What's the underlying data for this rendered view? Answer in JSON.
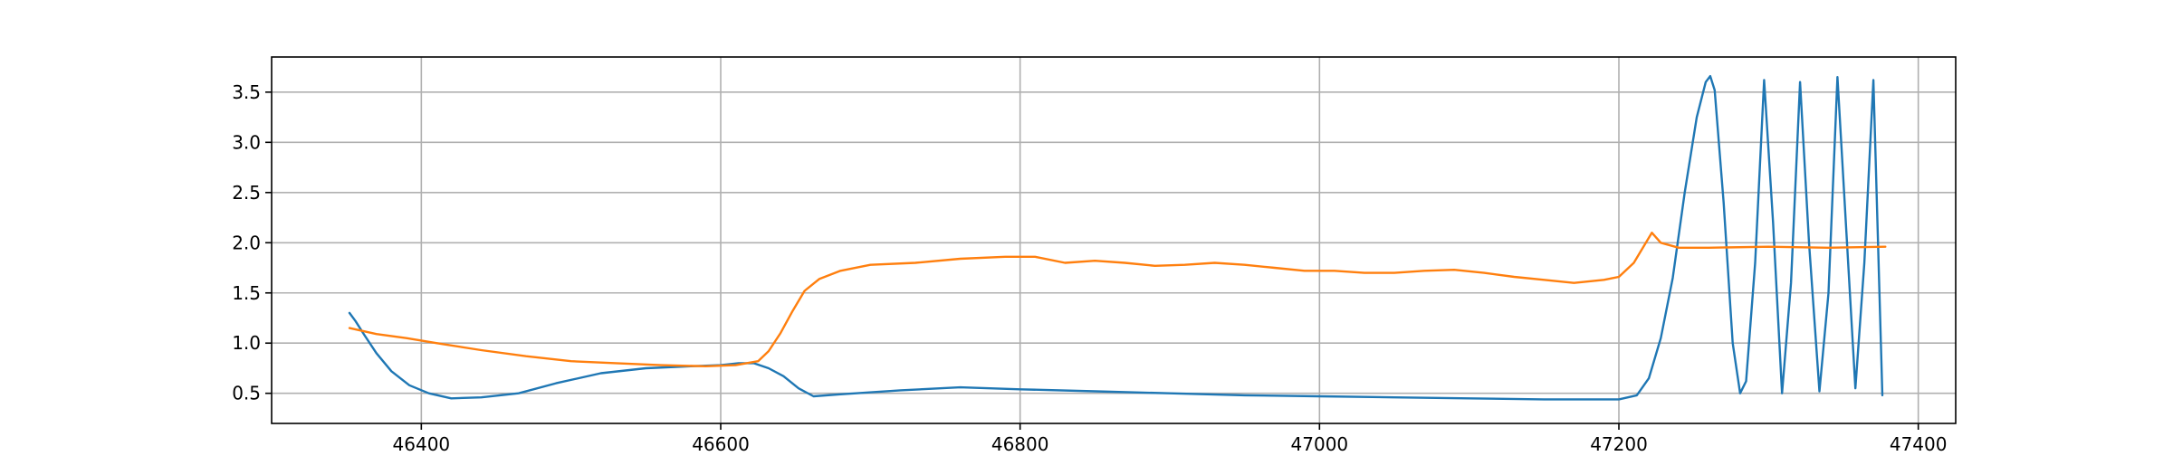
{
  "chart_data": {
    "type": "line",
    "title": "",
    "xlabel": "",
    "ylabel": "",
    "xlim": [
      46300,
      47425
    ],
    "ylim": [
      0.2,
      3.85
    ],
    "x_ticks": [
      46400,
      46600,
      46800,
      47000,
      47200,
      47400
    ],
    "y_ticks": [
      0.5,
      1.0,
      1.5,
      2.0,
      2.5,
      3.0,
      3.5
    ],
    "x_tick_labels": [
      "46400",
      "46600",
      "46800",
      "47000",
      "47200",
      "47400"
    ],
    "y_tick_labels": [
      "0.5",
      "1.0",
      "1.5",
      "2.0",
      "2.5",
      "3.0",
      "3.5"
    ],
    "grid": true,
    "legend": "none",
    "series": [
      {
        "color": "#1f77b4",
        "x": [
          46352,
          46356,
          46362,
          46370,
          46380,
          46392,
          46405,
          46420,
          46440,
          46465,
          46490,
          46520,
          46550,
          46580,
          46600,
          46612,
          46622,
          46632,
          46642,
          46652,
          46662,
          46680,
          46720,
          46760,
          46800,
          46850,
          46900,
          46950,
          47000,
          47050,
          47100,
          47150,
          47200,
          47212,
          47220,
          47228,
          47236,
          47244,
          47252,
          47258,
          47261,
          47264,
          47270,
          47276,
          47281,
          47285,
          47291,
          47297,
          47303,
          47309,
          47315,
          47321,
          47327,
          47334,
          47340,
          47346,
          47352,
          47358,
          47364,
          47370,
          47376
        ],
        "y": [
          1.3,
          1.22,
          1.08,
          0.9,
          0.72,
          0.58,
          0.5,
          0.45,
          0.46,
          0.5,
          0.6,
          0.7,
          0.75,
          0.77,
          0.78,
          0.8,
          0.8,
          0.75,
          0.67,
          0.55,
          0.47,
          0.49,
          0.53,
          0.56,
          0.54,
          0.52,
          0.5,
          0.48,
          0.47,
          0.46,
          0.45,
          0.44,
          0.44,
          0.48,
          0.65,
          1.05,
          1.65,
          2.5,
          3.25,
          3.6,
          3.66,
          3.52,
          2.4,
          1.0,
          0.5,
          0.62,
          1.8,
          3.62,
          2.2,
          0.5,
          1.6,
          3.6,
          2.0,
          0.52,
          1.5,
          3.65,
          2.1,
          0.55,
          1.8,
          3.62,
          0.48
        ]
      },
      {
        "color": "#ff7f0e",
        "x": [
          46352,
          46370,
          46390,
          46410,
          46440,
          46470,
          46500,
          46530,
          46560,
          46590,
          46610,
          46625,
          46632,
          46640,
          46648,
          46656,
          46666,
          46680,
          46700,
          46730,
          46760,
          46790,
          46810,
          46830,
          46850,
          46870,
          46890,
          46910,
          46930,
          46950,
          46970,
          46990,
          47010,
          47030,
          47050,
          47070,
          47090,
          47110,
          47130,
          47150,
          47170,
          47190,
          47200,
          47210,
          47222,
          47228,
          47240,
          47260,
          47300,
          47340,
          47378
        ],
        "y": [
          1.15,
          1.09,
          1.05,
          1.0,
          0.93,
          0.87,
          0.82,
          0.8,
          0.78,
          0.77,
          0.78,
          0.82,
          0.92,
          1.1,
          1.32,
          1.52,
          1.64,
          1.72,
          1.78,
          1.8,
          1.84,
          1.86,
          1.86,
          1.8,
          1.82,
          1.8,
          1.77,
          1.78,
          1.8,
          1.78,
          1.75,
          1.72,
          1.72,
          1.7,
          1.7,
          1.72,
          1.73,
          1.7,
          1.66,
          1.63,
          1.6,
          1.63,
          1.66,
          1.8,
          2.1,
          2.0,
          1.95,
          1.95,
          1.96,
          1.95,
          1.96
        ]
      }
    ]
  }
}
